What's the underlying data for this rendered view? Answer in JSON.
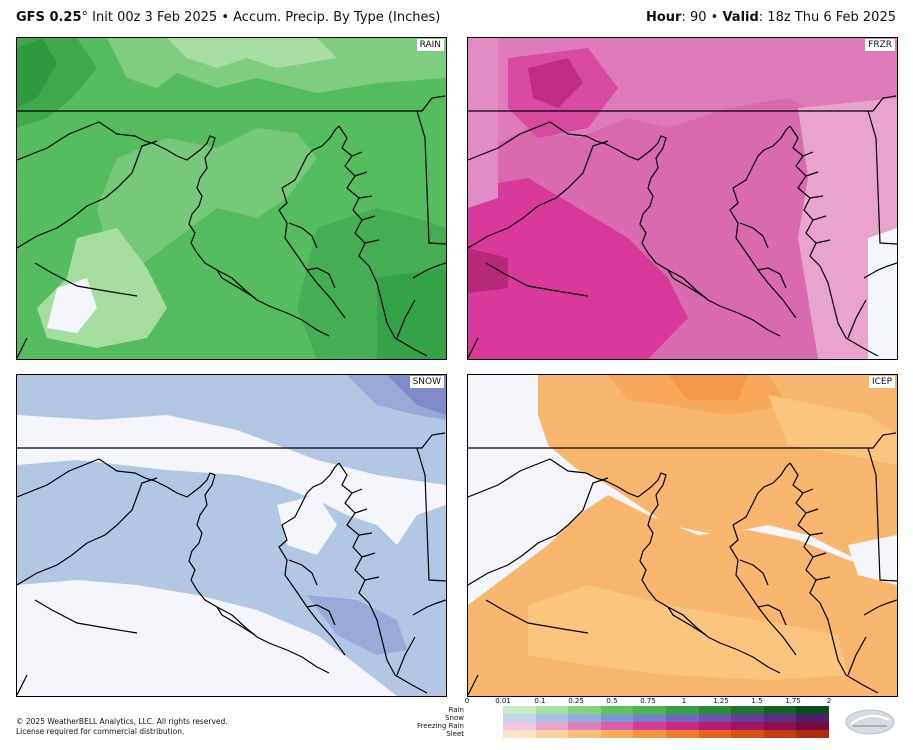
{
  "header": {
    "model": "GFS 0.25",
    "degree": "°",
    "init": " Init 00z 3 Feb 2025 • Accum. Precip. By Type (Inches)",
    "hour_label": "Hour",
    "hour_value": ": 90 • ",
    "valid_label": "Valid",
    "valid_value": ": 18z Thu 6 Feb 2025"
  },
  "panels": {
    "rain": "RAIN",
    "frzr": "FRZR",
    "snow": "SNOW",
    "icep": "ICEP"
  },
  "legend": {
    "ticks": [
      "0",
      "0.01",
      "0.1",
      "0.25",
      "0.5",
      "0.75",
      "1",
      "1.25",
      "1.5",
      "1.75",
      "2"
    ],
    "rows": [
      "Rain",
      "Snow",
      "Freezing Rain",
      "Sleet"
    ],
    "colors": {
      "rain": [
        "#c9ecc4",
        "#a6dfa0",
        "#84d27e",
        "#62c35e",
        "#4bb650",
        "#36a247",
        "#268c3b",
        "#1a7730",
        "#106226",
        "#084d1c"
      ],
      "snow": [
        "#c4d5ec",
        "#a9c2e4",
        "#8fafdb",
        "#7d99cf",
        "#7581c3",
        "#6f6ab6",
        "#6a54a6",
        "#643f94",
        "#5a2d80",
        "#4f1e6a"
      ],
      "frzr": [
        "#f1c6e1",
        "#e8a2cf",
        "#df7fbe",
        "#d85dac",
        "#d33a9a",
        "#cb2587",
        "#b81b76",
        "#a31464",
        "#8d0f52",
        "#760a41"
      ],
      "sleet": [
        "#fde3c8",
        "#fcd1a2",
        "#fbbf7c",
        "#faab5a",
        "#f5953d",
        "#ee7d2a",
        "#e5651f",
        "#d84f18",
        "#c63b12",
        "#b02a0d"
      ]
    }
  },
  "copyright": {
    "line1": "© 2025 WeatherBELL Analytics, LLC. All rights reserved.",
    "line2": "License required for commercial distribution."
  },
  "logo": {
    "icon": "weatherbell-logo"
  }
}
